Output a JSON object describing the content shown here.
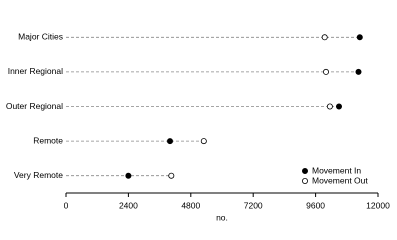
{
  "chart_data": {
    "type": "dot",
    "categories": [
      "Major Cities",
      "Inner Regional",
      "Outer Regional",
      "Remote",
      "Very Remote"
    ],
    "series": [
      {
        "name": "Movement In",
        "color": "#000000",
        "marker": "filled",
        "values": [
          11300,
          11250,
          10500,
          4000,
          2400
        ]
      },
      {
        "name": "Movement Out",
        "color": "#000000",
        "marker": "open",
        "values": [
          9950,
          10000,
          10150,
          5300,
          4050
        ]
      }
    ],
    "xlabel": "no.",
    "xlim": [
      0,
      12000
    ],
    "xticks": [
      0,
      2400,
      4800,
      7200,
      9600,
      12000
    ],
    "legend": "lower right"
  }
}
